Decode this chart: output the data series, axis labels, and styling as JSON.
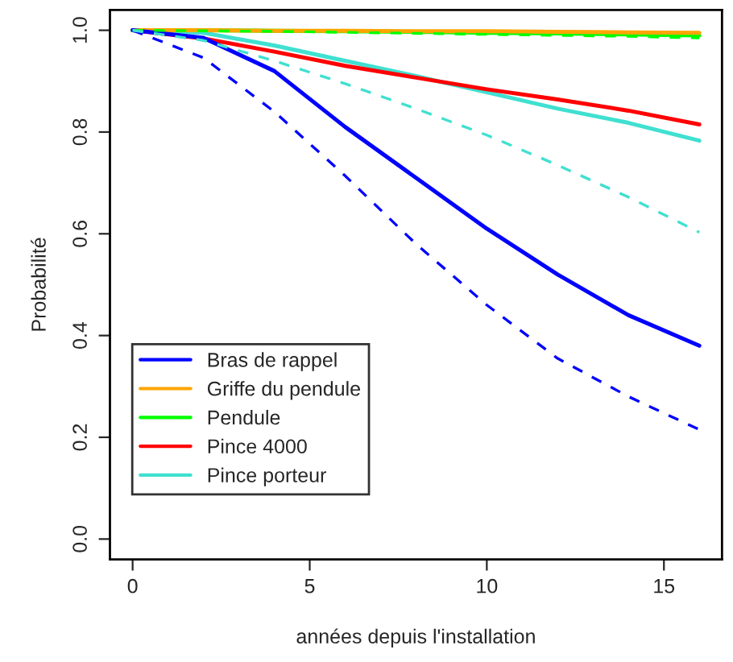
{
  "chart_data": {
    "type": "line",
    "xlabel": "années depuis l'installation",
    "ylabel": "Probabilité",
    "x": [
      0,
      2,
      4,
      6,
      8,
      10,
      12,
      14,
      16
    ],
    "xlim": [
      -0.64,
      16.64
    ],
    "ylim": [
      -0.04,
      1.04
    ],
    "xticks": [
      0,
      5,
      10,
      15
    ],
    "yticks": [
      {
        "value": 0,
        "label": "0.0"
      },
      0.2,
      0.4,
      0.6,
      0.8,
      {
        "value": 1,
        "label": "1.0"
      }
    ],
    "grid": false,
    "legend": "bottom left",
    "marker": "none",
    "series": [
      {
        "name": "Bras de rappel",
        "color": "#0000ff",
        "line_style": "solid",
        "values": [
          1,
          0.985,
          0.92,
          0.81,
          0.71,
          0.61,
          0.52,
          0.44,
          0.38
        ]
      },
      {
        "name": "Griffe du pendule",
        "color": "#ffa500",
        "line_style": "solid",
        "values": [
          1,
          1,
          0.999,
          0.999,
          0.998,
          0.998,
          0.997,
          0.996,
          0.995
        ]
      },
      {
        "name": "Pendule",
        "color": "#00ff00",
        "line_style": "solid",
        "values": [
          1,
          1,
          0.999,
          0.998,
          0.997,
          0.995,
          0.994,
          0.992,
          0.99
        ]
      },
      {
        "name": "Pince 4000",
        "color": "#ff0000",
        "line_style": "solid",
        "values": [
          1,
          0.984,
          0.958,
          0.93,
          0.907,
          0.884,
          0.864,
          0.842,
          0.815
        ]
      },
      {
        "name": "Pince porteur",
        "color": "#40e0d0",
        "line_style": "solid",
        "values": [
          1,
          0.995,
          0.97,
          0.94,
          0.91,
          0.878,
          0.846,
          0.818,
          0.783
        ]
      },
      {
        "color": "#0000ff",
        "line_style": "dashed",
        "values": [
          1,
          0.946,
          0.84,
          0.714,
          0.58,
          0.46,
          0.355,
          0.28,
          0.215
        ]
      },
      {
        "color": "#00ff00",
        "line_style": "dashed",
        "values": [
          1,
          0.999,
          0.998,
          0.996,
          0.994,
          0.992,
          0.99,
          0.988,
          0.985
        ]
      },
      {
        "color": "#40e0d0",
        "line_style": "dashed",
        "values": [
          1,
          0.98,
          0.94,
          0.895,
          0.846,
          0.794,
          0.735,
          0.672,
          0.603
        ]
      }
    ]
  }
}
